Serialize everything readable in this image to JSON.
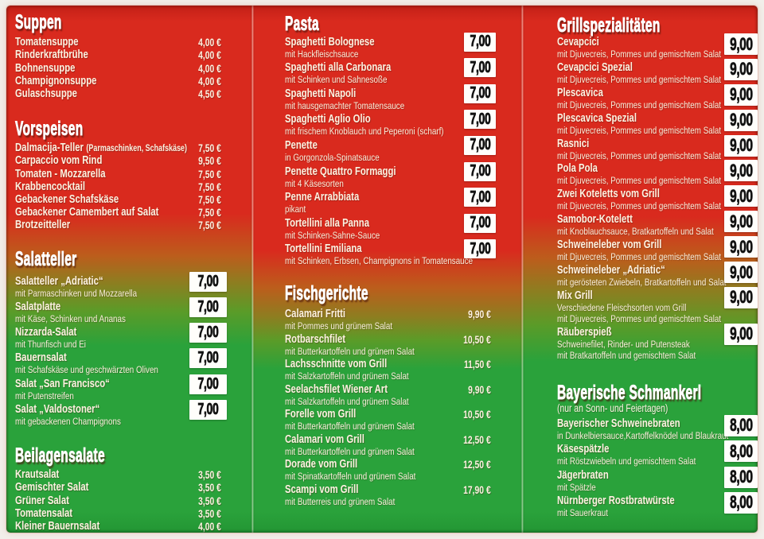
{
  "palette": {
    "red": "#d92a1e",
    "red_hi": "#c32017",
    "orange": "#bc5d1c",
    "olive": "#8e7d20",
    "ygreen": "#5b9b28",
    "green": "#2aa23b",
    "green_deep": "#239634",
    "cream": "#fdf3e2",
    "cream2": "#f9efdc",
    "box_bg": "#fffefb",
    "box_text": "#121212"
  },
  "menu": {
    "columns": [
      {
        "sections": [
          {
            "title": "Suppen",
            "price_style": "plain",
            "items": [
              {
                "name": "Tomatensuppe",
                "price": "4,00 €"
              },
              {
                "name": "Rinderkraftbrühe",
                "price": "4,00 €"
              },
              {
                "name": "Bohnensuppe",
                "price": "4,00 €"
              },
              {
                "name": "Champignonsuppe",
                "price": "4,00 €"
              },
              {
                "name": "Gulaschsuppe",
                "price": "4,50 €"
              }
            ]
          },
          {
            "title": "Vorspeisen",
            "price_style": "plain",
            "items": [
              {
                "name": "Dalmacija-Teller",
                "note": "(Parmaschinken, Schafskäse)",
                "price": "7,50 €"
              },
              {
                "name": "Carpaccio vom Rind",
                "price": "9,50 €"
              },
              {
                "name": "Tomaten - Mozzarella",
                "price": "7,50 €"
              },
              {
                "name": "Krabbencocktail",
                "price": "7,50 €"
              },
              {
                "name": "Gebackener Schafskäse",
                "price": "7,50 €"
              },
              {
                "name": "Gebackener Camembert auf Salat",
                "price": "7,50 €"
              },
              {
                "name": "Brotzeitteller",
                "price": "7,50 €"
              }
            ]
          },
          {
            "title": "Salatteller",
            "price_style": "box",
            "items": [
              {
                "name": "Salatteller „Adriatic“",
                "desc": "mit Parmaschinken und Mozzarella",
                "price": "7,00"
              },
              {
                "name": "Salatplatte",
                "desc": "mit Käse, Schinken und Ananas",
                "price": "7,00"
              },
              {
                "name": "Nizzarda-Salat",
                "desc": "mit Thunfisch und Ei",
                "price": "7,00"
              },
              {
                "name": "Bauernsalat",
                "desc": "mit Schafskäse und geschwärzten Oliven",
                "price": "7,00"
              },
              {
                "name": "Salat „San Francisco“",
                "desc": "mit Putenstreifen",
                "price": "7,00"
              },
              {
                "name": "Salat „Valdostoner“",
                "desc": "mit gebackenen Champignons",
                "price": "7,00"
              }
            ]
          },
          {
            "title": "Beilagensalate",
            "price_style": "plain",
            "items": [
              {
                "name": "Krautsalat",
                "price": "3,50 €"
              },
              {
                "name": "Gemischter Salat",
                "price": "3,50 €"
              },
              {
                "name": "Grüner Salat",
                "price": "3,50 €"
              },
              {
                "name": "Tomatensalat",
                "price": "3,50 €"
              },
              {
                "name": "Kleiner Bauernsalat",
                "price": "4,00 €"
              }
            ]
          }
        ]
      },
      {
        "sections": [
          {
            "title": "Pasta",
            "price_style": "box",
            "items": [
              {
                "name": "Spaghetti Bolognese",
                "desc": "mit Hackfleischsauce",
                "price": "7,00"
              },
              {
                "name": "Spaghetti alla Carbonara",
                "desc": "mit Schinken und Sahnesoße",
                "price": "7,00"
              },
              {
                "name": "Spaghetti Napoli",
                "desc": "mit hausgemachter Tomatensauce",
                "price": "7,00"
              },
              {
                "name": "Spaghetti Aglio Olio",
                "desc": "mit frischem Knoblauch und Peperoni (scharf)",
                "price": "7,00"
              },
              {
                "name": "Penette",
                "desc": "in Gorgonzola-Spinatsauce",
                "price": "7,00"
              },
              {
                "name": "Penette Quattro Formaggi",
                "desc": "mit 4 Käsesorten",
                "price": "7,00"
              },
              {
                "name": "Penne Arrabbiata",
                "desc": "pikant",
                "price": "7,00"
              },
              {
                "name": "Tortellini alla Panna",
                "desc": "mit Schinken-Sahne-Sauce",
                "price": "7,00"
              },
              {
                "name": "Tortellini Emiliana",
                "desc": "mit Schinken, Erbsen, Champignons in Tomatensauce",
                "price": "7,00"
              }
            ]
          },
          {
            "title": "Fischgerichte",
            "price_style": "plain",
            "items": [
              {
                "name": "Calamari Fritti",
                "desc": "mit Pommes und grünem Salat",
                "price": "9,90 €"
              },
              {
                "name": "Rotbarschfilet",
                "desc": "mit Butterkartoffeln und grünem Salat",
                "price": "10,50 €"
              },
              {
                "name": "Lachsschnitte vom Grill",
                "desc": "mit Salzkartoffeln und grünem Salat",
                "price": "11,50 €"
              },
              {
                "name": "Seelachsfilet Wiener Art",
                "desc": "mit Salzkartoffeln und grünem Salat",
                "price": "9,90 €"
              },
              {
                "name": "Forelle vom Grill",
                "desc": "mit Butterkartoffeln und grünem Salat",
                "price": "10,50 €"
              },
              {
                "name": "Calamari vom Grill",
                "desc": "mit Butterkartoffeln und grünem Salat",
                "price": "12,50 €"
              },
              {
                "name": "Dorade vom Grill",
                "desc": "mit Spinatkartoffeln und grünem Salat",
                "price": "12,50 €"
              },
              {
                "name": "Scampi vom Grill",
                "desc": "mit Butterreis und grünem Salat",
                "price": "17,90 €"
              }
            ]
          }
        ]
      },
      {
        "sections": [
          {
            "title": "Grillspezialitäten",
            "price_style": "box",
            "items": [
              {
                "name": "Cevapcici",
                "desc": "mit Djuvecreis, Pommes und gemischtem Salat",
                "price": "9,00"
              },
              {
                "name": "Cevapcici Spezial",
                "desc": "mit Djuvecreis, Pommes und gemischtem Salat",
                "price": "9,00"
              },
              {
                "name": "Plescavica",
                "desc": "mit Djuvecreis, Pommes und gemischtem Salat",
                "price": "9,00"
              },
              {
                "name": "Plescavica Spezial",
                "desc": "mit Djuvecreis, Pommes und gemischtem Salat",
                "price": "9,00"
              },
              {
                "name": "Rasnici",
                "desc": "mit Djuvecreis, Pommes und gemischtem Salat",
                "price": "9,00"
              },
              {
                "name": "Pola Pola",
                "desc": "mit Djuvecreis, Pommes und gemischtem Salat",
                "price": "9,00"
              },
              {
                "name": "Zwei Koteletts vom Grill",
                "desc": "mit Djuvecreis, Pommes und gemischtem Salat",
                "price": "9,00"
              },
              {
                "name": "Samobor-Kotelett",
                "desc": "mit Knoblauchsauce, Bratkartoffeln und Salat",
                "price": "9,00"
              },
              {
                "name": "Schweineleber vom Grill",
                "desc": "mit Djuvecreis, Pommes und gemischtem Salat",
                "price": "9,00"
              },
              {
                "name": "Schweineleber „Adriatic“",
                "desc": "mit gerösteten Zwiebeln, Bratkartoffeln und Salat",
                "price": "9,00"
              },
              {
                "name": "Mix Grill",
                "desc": "Verschiedene Fleischsorten vom Grill",
                "desc2": "mit Djuvecreis, Pommes und gemischtem Salat",
                "price": "9,00"
              },
              {
                "name": "Räuberspieß",
                "desc": "Schweinefilet, Rinder- und Putensteak",
                "desc2": "mit Bratkartoffeln und gemischtem Salat",
                "price": "9,00"
              }
            ]
          },
          {
            "title": "Bayerische Schmankerl",
            "subtitle": "(nur an Sonn- und Feiertagen)",
            "price_style": "box",
            "items": [
              {
                "name": "Bayerischer Schweinebraten",
                "desc": "in Dunkelbiersauce,Kartoffelknödel und Blaukraut",
                "price": "8,00"
              },
              {
                "name": "Käsespätzle",
                "desc": "mit Röstzwiebeln und gemischtem Salat",
                "price": "8,00"
              },
              {
                "name": "Jägerbraten",
                "desc": "mit Spätzle",
                "price": "8,00"
              },
              {
                "name": "Nürnberger Rostbratwürste",
                "desc": "mit Sauerkraut",
                "price": "8,00"
              }
            ]
          }
        ]
      }
    ]
  }
}
